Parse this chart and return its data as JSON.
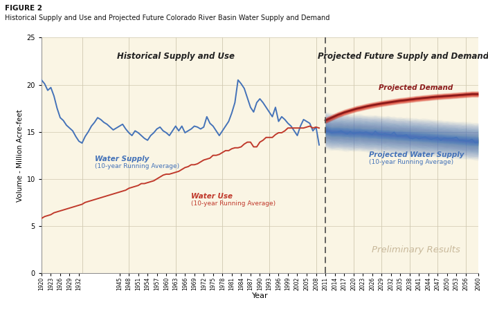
{
  "figure_label": "FIGURE 2",
  "title": "Historical Supply and Use and Projected Future Colorado River Basin Water Supply and Demand",
  "xlabel": "Year",
  "ylabel": "Volume - Million Acre-feet",
  "ylim": [
    0,
    25
  ],
  "yticks": [
    0,
    5,
    10,
    15,
    20,
    25
  ],
  "bg_color": "#faf5e4",
  "fig_bg_color": "#ffffff",
  "divider_year": 2011,
  "hist_section_label": "Historical Supply and Use",
  "proj_section_label": "Projected Future Supply and Demand",
  "water_supply_label1": "Water Supply",
  "water_supply_label2": "(10-year Running Average)",
  "water_use_label1": "Water Use",
  "water_use_label2": "(10-year Running Average)",
  "proj_demand_label": "Projected Demand",
  "proj_supply_label1": "Projected Water Supply",
  "proj_supply_label2": "(10-year Running Average)",
  "prelim_label": "Preliminary Results",
  "supply_color": "#4472b8",
  "use_color": "#c0392b",
  "proj_demand_color": "#8b1a1a",
  "proj_supply_color": "#4472b8",
  "hist_xticks": [
    1920,
    1923,
    1926,
    1929,
    1932,
    1945,
    1948,
    1951,
    1954,
    1957,
    1960,
    1963,
    1966,
    1969,
    1972,
    1975,
    1978,
    1981,
    1984,
    1987,
    1990,
    1993,
    1996,
    1999,
    2002,
    2005,
    2008
  ],
  "proj_xticks": [
    2011,
    2014,
    2017,
    2020,
    2023,
    2026,
    2029,
    2032,
    2035,
    2038,
    2041,
    2044,
    2047,
    2050,
    2053,
    2056,
    2060
  ],
  "hist_years": [
    1920,
    1921,
    1922,
    1923,
    1924,
    1925,
    1926,
    1927,
    1928,
    1929,
    1930,
    1931,
    1932,
    1933,
    1934,
    1935,
    1936,
    1937,
    1938,
    1939,
    1940,
    1941,
    1942,
    1943,
    1944,
    1945,
    1946,
    1947,
    1948,
    1949,
    1950,
    1951,
    1952,
    1953,
    1954,
    1955,
    1956,
    1957,
    1958,
    1959,
    1960,
    1961,
    1962,
    1963,
    1964,
    1965,
    1966,
    1967,
    1968,
    1969,
    1970,
    1971,
    1972,
    1973,
    1974,
    1975,
    1976,
    1977,
    1978,
    1979,
    1980,
    1981,
    1982,
    1983,
    1984,
    1985,
    1986,
    1987,
    1988,
    1989,
    1990,
    1991,
    1992,
    1993,
    1994,
    1995,
    1996,
    1997,
    1998,
    1999,
    2000,
    2001,
    2002,
    2003,
    2004,
    2005,
    2006,
    2007,
    2008,
    2009
  ],
  "water_supply": [
    20.5,
    20.1,
    19.4,
    19.7,
    18.8,
    17.5,
    16.5,
    16.2,
    15.7,
    15.4,
    15.1,
    14.5,
    14.0,
    13.8,
    14.5,
    15.0,
    15.6,
    16.0,
    16.5,
    16.3,
    16.0,
    15.8,
    15.5,
    15.2,
    15.4,
    15.6,
    15.8,
    15.3,
    14.9,
    14.6,
    15.1,
    14.9,
    14.6,
    14.3,
    14.1,
    14.6,
    14.9,
    15.3,
    15.5,
    15.1,
    14.9,
    14.6,
    15.1,
    15.6,
    15.1,
    15.6,
    14.9,
    15.1,
    15.3,
    15.6,
    15.5,
    15.3,
    15.5,
    16.6,
    15.9,
    15.6,
    15.1,
    14.6,
    15.1,
    15.6,
    16.1,
    17.0,
    18.1,
    20.5,
    20.1,
    19.6,
    18.6,
    17.6,
    17.1,
    18.1,
    18.5,
    18.1,
    17.6,
    17.1,
    16.6,
    17.6,
    16.1,
    16.6,
    16.3,
    15.9,
    15.6,
    15.1,
    14.6,
    15.6,
    16.3,
    16.1,
    15.9,
    15.1,
    15.5,
    13.6
  ],
  "water_use": [
    5.8,
    6.0,
    6.1,
    6.2,
    6.4,
    6.5,
    6.6,
    6.7,
    6.8,
    6.9,
    7.0,
    7.1,
    7.2,
    7.3,
    7.5,
    7.6,
    7.7,
    7.8,
    7.9,
    8.0,
    8.1,
    8.2,
    8.3,
    8.4,
    8.5,
    8.6,
    8.7,
    8.8,
    9.0,
    9.1,
    9.2,
    9.3,
    9.5,
    9.5,
    9.6,
    9.7,
    9.8,
    10.0,
    10.2,
    10.4,
    10.5,
    10.5,
    10.6,
    10.7,
    10.8,
    11.0,
    11.2,
    11.3,
    11.5,
    11.5,
    11.6,
    11.8,
    12.0,
    12.1,
    12.2,
    12.5,
    12.5,
    12.6,
    12.8,
    13.0,
    13.0,
    13.2,
    13.3,
    13.3,
    13.4,
    13.7,
    13.9,
    13.9,
    13.4,
    13.4,
    13.9,
    14.1,
    14.4,
    14.4,
    14.4,
    14.7,
    14.9,
    14.9,
    15.1,
    15.4,
    15.4,
    15.4,
    15.4,
    15.4,
    15.4,
    15.5,
    15.6,
    15.4,
    15.5,
    15.4
  ],
  "proj_years": [
    2011,
    2012,
    2013,
    2014,
    2015,
    2016,
    2017,
    2018,
    2019,
    2020,
    2021,
    2022,
    2023,
    2024,
    2025,
    2026,
    2027,
    2028,
    2029,
    2030,
    2031,
    2032,
    2033,
    2034,
    2035,
    2036,
    2037,
    2038,
    2039,
    2040,
    2041,
    2042,
    2043,
    2044,
    2045,
    2046,
    2047,
    2048,
    2049,
    2050,
    2051,
    2052,
    2053,
    2054,
    2055,
    2056,
    2057,
    2058,
    2059,
    2060
  ],
  "proj_demand_mean": [
    16.2,
    16.35,
    16.5,
    16.65,
    16.8,
    16.92,
    17.05,
    17.15,
    17.25,
    17.35,
    17.45,
    17.52,
    17.6,
    17.68,
    17.75,
    17.82,
    17.88,
    17.94,
    18.0,
    18.05,
    18.1,
    18.15,
    18.2,
    18.25,
    18.3,
    18.33,
    18.37,
    18.42,
    18.45,
    18.5,
    18.53,
    18.57,
    18.6,
    18.63,
    18.67,
    18.7,
    18.73,
    18.75,
    18.78,
    18.8,
    18.82,
    18.85,
    18.87,
    18.9,
    18.92,
    18.95,
    18.97,
    19.0,
    19.0,
    19.0
  ],
  "proj_supply_mean": [
    15.2,
    15.1,
    15.0,
    15.0,
    15.0,
    15.0,
    14.95,
    14.95,
    14.9,
    14.9,
    14.9,
    14.9,
    14.85,
    14.85,
    14.8,
    14.8,
    14.8,
    14.75,
    14.75,
    14.7,
    14.7,
    14.65,
    14.65,
    14.6,
    14.6,
    14.58,
    14.55,
    14.52,
    14.5,
    14.48,
    14.45,
    14.42,
    14.4,
    14.38,
    14.35,
    14.32,
    14.3,
    14.28,
    14.25,
    14.22,
    14.2,
    14.18,
    14.15,
    14.12,
    14.1,
    14.08,
    14.05,
    14.02,
    14.0,
    13.98
  ],
  "proj_demand_spread": 0.35,
  "proj_supply_spread": 2.0,
  "vert_grid_hist": [
    1933,
    1948,
    1963,
    1978,
    1993,
    2008
  ],
  "vert_grid_proj": [
    2020,
    2029,
    2038,
    2047,
    2056
  ]
}
